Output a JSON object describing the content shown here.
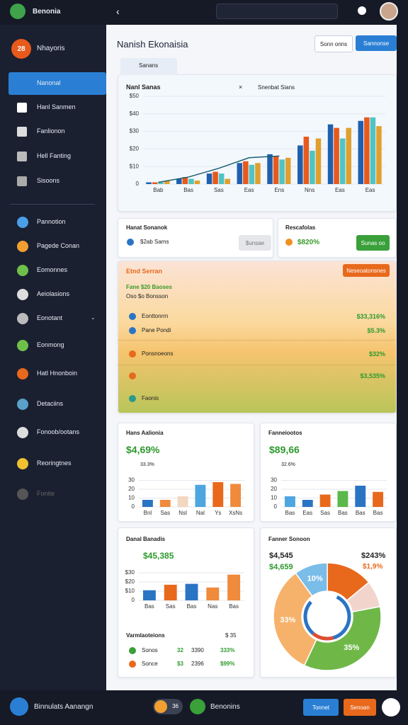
{
  "header": {
    "app": "Benonia"
  },
  "sidebar": {
    "badge": "28",
    "name": "Nhayoris",
    "items": [
      "Nanonal",
      "Hanl Sanmen",
      "Fanlionon",
      "Hell Fanting",
      "Sisoons"
    ],
    "items2": [
      "Pannotion",
      "Pagede Conan",
      "Eomonnes",
      "Aeiolasions",
      "Eonotant",
      "Eonmong",
      "Hatl Hnonboin",
      "Detaciins",
      "Fonoob/ootans",
      "Reoringtnes",
      "Fonite"
    ]
  },
  "page": {
    "title": "Nanish Ekonaisia",
    "buttons": [
      "Sonn onns",
      "Sannonse"
    ],
    "tab": "Sanans"
  },
  "summary": [
    {
      "title": "Hanat Sonanok",
      "value": "$2ab Sams",
      "button": "$unsae"
    },
    {
      "title": "Rescafolas",
      "value": "$820%",
      "button": "Sunas oo"
    }
  ],
  "panel": {
    "title": "Etnd Serran",
    "button": "Neseoatonsnes",
    "line1": "Fane $20 Baoses",
    "line2": "Oso $o Bonsson",
    "rows": [
      {
        "label": "Eonttonrrn",
        "value": "$33,316%"
      },
      {
        "label": "Pane Pondi",
        "value": "$5.3%"
      },
      {
        "label": "Ponsnoeons",
        "value": "$32%"
      },
      {
        "value": "$3,535%"
      },
      {
        "label": "Faonis"
      }
    ]
  },
  "chart_data": [
    {
      "type": "bar",
      "title": "Nanl Sanas",
      "subtitle": "Snenbat Sians",
      "categories": [
        "Bab",
        "Bas",
        "Sas",
        "Eas",
        "Ens",
        "Nns",
        "Eas",
        "Eas"
      ],
      "series": [
        {
          "color": "#1f5fae",
          "values": [
            1,
            3,
            6,
            12,
            17,
            22,
            34,
            36
          ]
        },
        {
          "color": "#e8591c",
          "values": [
            1,
            4,
            7,
            13,
            16,
            27,
            32,
            38
          ]
        },
        {
          "color": "#4fc4c4",
          "values": [
            1,
            3,
            6,
            11,
            14,
            19,
            26,
            38
          ]
        },
        {
          "color": "#e0a030",
          "values": [
            2,
            2,
            3,
            12,
            15,
            26,
            32,
            33
          ]
        }
      ],
      "trend": [
        1,
        4,
        9,
        15,
        16,
        null,
        null,
        null
      ],
      "trend_color": "#1d5f73",
      "ylim": [
        0,
        50
      ],
      "yticks": [
        0,
        {
          "value": 10,
          "label": "$10"
        },
        {
          "value": 20,
          "label": "$20"
        },
        {
          "value": 30,
          "label": "$30"
        },
        {
          "value": 40,
          "label": "$40"
        },
        {
          "value": 50,
          "label": "$50"
        }
      ],
      "grid": true
    },
    {
      "type": "bar",
      "title": "Hans Aalionia",
      "kpi": "$4,69%",
      "kpi_sub": "33.3%",
      "categories": [
        "Bnl",
        "Sas",
        "Nsl",
        "Nal",
        "Ys",
        "XsNs"
      ],
      "values": [
        8,
        8,
        12,
        25,
        28,
        26
      ],
      "colors": [
        "#2a74c4",
        "#f08a3c",
        "#f3d7c0",
        "#4ea6e0",
        "#e8691c",
        "#f08a3c"
      ],
      "ylim": [
        0,
        40
      ],
      "yticks": [
        0,
        10,
        20,
        30
      ],
      "grid": true
    },
    {
      "type": "bar",
      "title": "Fanneiootos",
      "kpi": "$89,66",
      "kpi_sub": "32.6%",
      "categories": [
        "Bas",
        "Eas",
        "Sas",
        "Bas",
        "Bas",
        "Bas"
      ],
      "values": [
        12,
        8,
        14,
        18,
        24,
        17
      ],
      "colors": [
        "#4ea6e0",
        "#2a74c4",
        "#e8691c",
        "#5bb84a",
        "#2a74c4",
        "#e8691c"
      ],
      "ylim": [
        0,
        40
      ],
      "yticks": [
        0,
        10,
        20,
        30
      ],
      "grid": true
    },
    {
      "type": "bar",
      "title": "Danal Banadis",
      "kpi": "$45,385",
      "categories": [
        "Bas",
        "Sas",
        "Bas",
        "Nas",
        "Bas"
      ],
      "values": [
        11,
        17,
        18,
        14,
        28
      ],
      "colors": [
        "#2a74c4",
        "#e8691c",
        "#2a74c4",
        "#f08a3c",
        "#f08a3c"
      ],
      "ylim": [
        0,
        40
      ],
      "yticks": [
        0,
        {
          "value": 10,
          "label": "$10"
        },
        {
          "value": 20,
          "label": "$20"
        },
        {
          "value": 30,
          "label": "$30"
        }
      ],
      "grid": true,
      "list_title": "Varmlaoteions",
      "list_value": "$ 35",
      "rows": [
        [
          "Sonos",
          "32",
          "3390",
          "333%"
        ],
        [
          "Sonce",
          "$3",
          "2396",
          "$99%"
        ]
      ]
    },
    {
      "type": "donut",
      "title": "Fanner Sonoon",
      "kpis": [
        "$4,545",
        "$243%",
        "$4,659",
        "$1,9%"
      ],
      "values": [
        14,
        8,
        35,
        33,
        10
      ],
      "colors": [
        "#e8691c",
        "#f1d5cc",
        "#6fb848",
        "#f6b26b",
        "#79bde8"
      ],
      "value_labels": [
        null,
        null,
        "35%",
        "33%",
        "10%"
      ]
    }
  ],
  "footer": {
    "text": "Binnulats Aanangn",
    "toggle": "36",
    "status": "Benonins",
    "buttons": [
      "Tonnet",
      "Senoan"
    ]
  }
}
